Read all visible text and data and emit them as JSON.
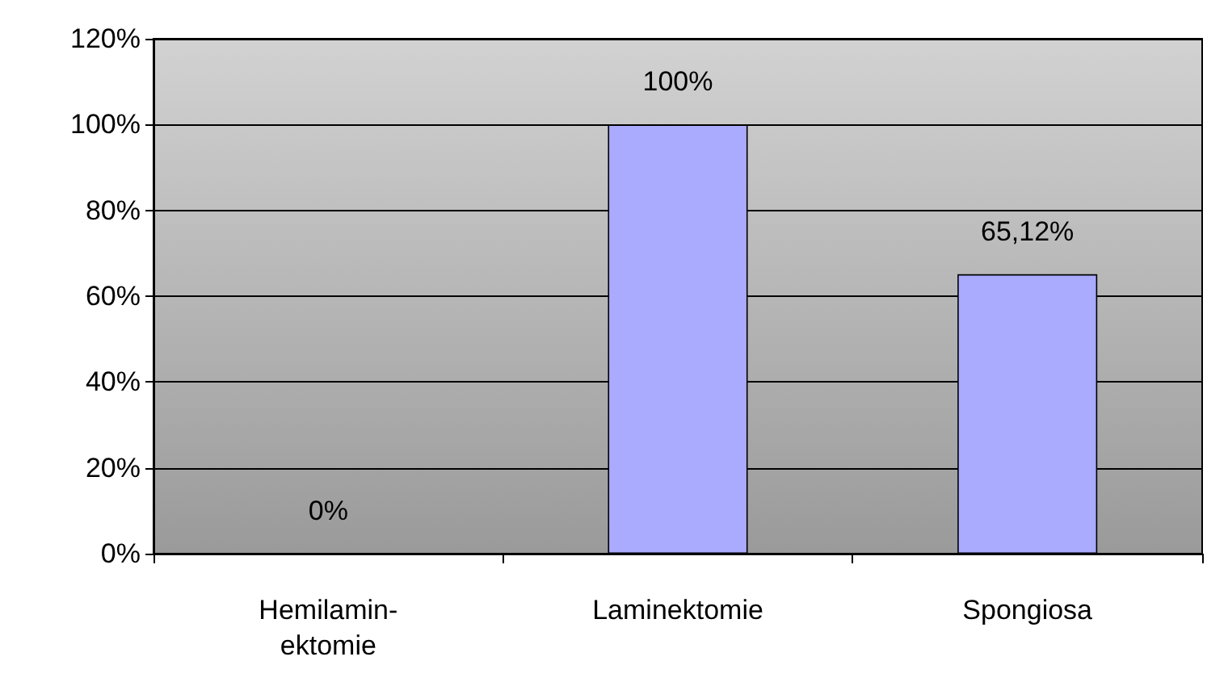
{
  "chart_data": {
    "type": "bar",
    "categories": [
      "Hemilamin-\nektomie",
      "Laminektomie",
      "Spongiosa"
    ],
    "values": [
      0,
      100,
      65.12
    ],
    "color": "#aaaaff",
    "value_labels": [
      "0%",
      "100%",
      "65,12%"
    ],
    "ylim": [
      0,
      120
    ],
    "yticks": [
      {
        "value": 0,
        "label": "0%"
      },
      {
        "value": 20,
        "label": "20%"
      },
      {
        "value": 40,
        "label": "40%"
      },
      {
        "value": 60,
        "label": "60%"
      },
      {
        "value": 80,
        "label": "80%"
      },
      {
        "value": 100,
        "label": "100%"
      },
      {
        "value": 120,
        "label": "120%"
      }
    ],
    "grid": "y"
  }
}
